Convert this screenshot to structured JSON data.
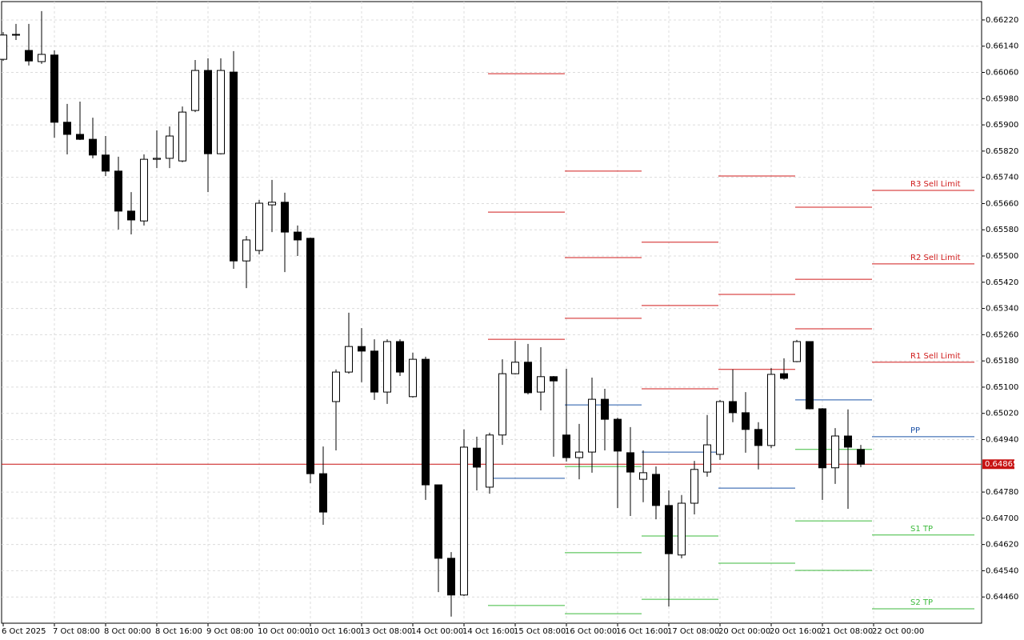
{
  "chart_data": {
    "type": "candlestick",
    "categories": [
      "6 Oct 2025",
      null,
      null,
      null,
      "7 Oct 08:00",
      null,
      null,
      null,
      "8 Oct 00:00",
      null,
      null,
      null,
      "8 Oct 16:00",
      null,
      null,
      null,
      "9 Oct 08:00",
      null,
      null,
      null,
      "10 Oct 00:00",
      null,
      null,
      null,
      "10 Oct 16:00",
      null,
      null,
      null,
      "13 Oct 08:00",
      null,
      null,
      null,
      "14 Oct 00:00",
      null,
      null,
      null,
      "14 Oct 16:00",
      null,
      null,
      null,
      "15 Oct 08:00",
      null,
      null,
      null,
      "16 Oct 00:00",
      null,
      null,
      null,
      "16 Oct 16:00",
      null,
      null,
      null,
      "17 Oct 08:00",
      null,
      null,
      null,
      "20 Oct 00:00",
      null,
      null,
      null,
      "20 Oct 16:00",
      null,
      null,
      null,
      "21 Oct 08:00",
      null,
      null,
      null,
      "22 Oct 00:00",
      null,
      null,
      null,
      null,
      null,
      null,
      null,
      null
    ],
    "open": [
      0.661,
      0.66174,
      0.66127,
      0.66093,
      0.66113,
      0.65908,
      0.65871,
      0.65856,
      0.65808,
      0.65759,
      0.65637,
      0.65607,
      0.65795,
      0.65798,
      0.6579,
      0.65944,
      0.66066,
      0.65812,
      0.66061,
      0.65485,
      0.65517,
      0.65656,
      0.65664,
      0.65573,
      0.65554,
      0.64836,
      0.65056,
      0.65146,
      0.65224,
      0.6521,
      0.65085,
      0.65239,
      0.65071,
      0.65185,
      0.64802,
      0.64578,
      0.64466,
      0.64914,
      0.64795,
      0.64954,
      0.65141,
      0.65176,
      0.65085,
      0.65132,
      0.64954,
      0.64885,
      0.64902,
      0.65063,
      0.65002,
      0.649,
      0.64819,
      0.64834,
      0.64739,
      0.64588,
      0.64746,
      0.64841,
      0.64895,
      0.65056,
      0.65022,
      0.64971,
      0.64922,
      0.65141,
      0.65178,
      0.65239,
      0.65034,
      0.64854,
      0.64951,
      0.6491,
      null,
      null,
      null,
      null,
      null,
      null,
      null,
      null,
      null
    ],
    "high": [
      0.66183,
      0.66208,
      0.66208,
      0.66247,
      0.66127,
      0.65964,
      0.65971,
      0.65922,
      0.65866,
      0.65803,
      0.65695,
      0.6581,
      0.65883,
      0.65895,
      0.65956,
      0.66098,
      0.66103,
      0.66103,
      0.66125,
      0.65561,
      0.65671,
      0.65732,
      0.65693,
      0.65593,
      0.65556,
      0.64919,
      0.65154,
      0.65327,
      0.6528,
      0.65246,
      0.65246,
      0.65246,
      0.65205,
      0.65193,
      0.64802,
      0.64597,
      0.64971,
      0.64949,
      0.64961,
      0.65185,
      0.65241,
      0.65232,
      0.65222,
      0.65134,
      0.65156,
      0.64988,
      0.65129,
      0.65095,
      0.65007,
      0.64978,
      0.64907,
      0.64858,
      0.64785,
      0.64771,
      0.64875,
      0.65015,
      0.65061,
      0.65154,
      0.65085,
      0.64993,
      0.65158,
      0.65188,
      0.65244,
      0.65239,
      0.65036,
      0.64975,
      0.65032,
      0.64924,
      null,
      null,
      null,
      null,
      null,
      null,
      null,
      null,
      null
    ],
    "low": [
      0.66095,
      0.66159,
      0.66081,
      0.66086,
      0.65861,
      0.6581,
      0.65854,
      0.65798,
      0.65744,
      0.65581,
      0.65566,
      0.65593,
      0.65768,
      0.65768,
      0.65786,
      0.65939,
      0.65695,
      0.6581,
      0.65461,
      0.65402,
      0.65505,
      0.65573,
      0.65451,
      0.655,
      0.64807,
      0.6468,
      0.64907,
      0.65141,
      0.65115,
      0.65061,
      0.65049,
      0.65134,
      0.65068,
      0.64756,
      0.64475,
      0.644,
      0.64463,
      0.64785,
      0.64775,
      0.64924,
      0.65139,
      0.65078,
      0.65029,
      0.64888,
      0.64873,
      0.64819,
      0.64839,
      0.64907,
      0.64731,
      0.64707,
      0.64749,
      0.64697,
      0.64431,
      0.64578,
      0.64712,
      0.64827,
      0.64878,
      0.64993,
      0.649,
      0.64849,
      0.64914,
      0.65122,
      0.65176,
      0.65032,
      0.64756,
      0.64805,
      0.64729,
      0.64856,
      null,
      null,
      null,
      null,
      null,
      null,
      null,
      null,
      null
    ],
    "close": [
      0.66174,
      0.66176,
      0.66095,
      0.66115,
      0.65908,
      0.65871,
      0.65856,
      0.65808,
      0.65759,
      0.65637,
      0.6561,
      0.65795,
      0.65798,
      0.65866,
      0.65939,
      0.66066,
      0.65812,
      0.66066,
      0.65485,
      0.65549,
      0.65661,
      0.65664,
      0.65573,
      0.65549,
      0.64836,
      0.64719,
      0.65146,
      0.65224,
      0.6521,
      0.65085,
      0.65239,
      0.65146,
      0.65185,
      0.64802,
      0.64578,
      0.64466,
      0.64917,
      0.64856,
      0.64954,
      0.65141,
      0.65176,
      0.65083,
      0.65132,
      0.65119,
      0.64885,
      0.64902,
      0.65063,
      0.65002,
      0.64905,
      0.64841,
      0.64839,
      0.64739,
      0.64592,
      0.64746,
      0.64849,
      0.64924,
      0.65056,
      0.65022,
      0.64971,
      0.64922,
      0.65139,
      0.65127,
      0.65239,
      0.65034,
      0.64854,
      0.64951,
      0.64917,
      0.64865,
      null,
      null,
      null,
      null,
      null,
      null,
      null,
      null,
      null
    ],
    "bull_color": "#ffffff",
    "bear_color": "#000000",
    "ylim": [
      0.6438,
      0.66276
    ],
    "yticks": [
      {
        "value": 0.6622,
        "label": "0.66220"
      },
      {
        "value": 0.6614,
        "label": "0.66140"
      },
      {
        "value": 0.6606,
        "label": "0.66060"
      },
      {
        "value": 0.6598,
        "label": "0.65980"
      },
      {
        "value": 0.659,
        "label": "0.65900"
      },
      {
        "value": 0.6582,
        "label": "0.65820"
      },
      {
        "value": 0.6574,
        "label": "0.65740"
      },
      {
        "value": 0.6566,
        "label": "0.65660"
      },
      {
        "value": 0.6558,
        "label": "0.65580"
      },
      {
        "value": 0.655,
        "label": "0.65500"
      },
      {
        "value": 0.6542,
        "label": "0.65420"
      },
      {
        "value": 0.6534,
        "label": "0.65340"
      },
      {
        "value": 0.6526,
        "label": "0.65260"
      },
      {
        "value": 0.6518,
        "label": "0.65180"
      },
      {
        "value": 0.651,
        "label": "0.65100"
      },
      {
        "value": 0.6502,
        "label": "0.65020"
      },
      {
        "value": 0.6494,
        "label": "0.64940"
      },
      {
        "value": 0.6478,
        "label": "0.64780"
      },
      {
        "value": 0.647,
        "label": "0.64700"
      },
      {
        "value": 0.6462,
        "label": "0.64620"
      },
      {
        "value": 0.6454,
        "label": "0.64540"
      },
      {
        "value": 0.6446,
        "label": "0.64460"
      }
    ],
    "grid": true,
    "current_price": 0.64865,
    "current_price_color": "#c81414",
    "level_periods": [
      [
        38,
        44
      ],
      [
        44,
        50
      ],
      [
        50,
        56
      ],
      [
        56,
        62
      ],
      [
        62,
        68
      ],
      [
        68,
        76
      ]
    ],
    "levels": [
      {
        "label": "R3 Sell Limit",
        "color": "#d01c1c",
        "values": [
          0.66056,
          0.65759,
          0.65542,
          0.65744,
          0.65649,
          0.657
        ]
      },
      {
        "label": "R2 Sell Limit",
        "color": "#d01c1c",
        "values": [
          0.65634,
          0.65495,
          0.65349,
          0.65383,
          0.65429,
          0.65476
        ]
      },
      {
        "label": "R1 Sell Limit",
        "color": "#d01c1c",
        "values": [
          0.65246,
          0.6531,
          0.65095,
          0.65154,
          0.65278,
          0.65176
        ]
      },
      {
        "label": "PP",
        "color": "#1e54a8",
        "values": [
          0.64822,
          0.65046,
          0.64902,
          0.64792,
          0.65061,
          0.64949
        ]
      },
      {
        "label": "S1 TP",
        "color": "#3cba3c",
        "values": [
          0.64434,
          0.64858,
          0.64646,
          0.64563,
          0.6491,
          0.64649
        ]
      },
      {
        "label": "S2 TP",
        "color": "#3cba3c",
        "values": [
          null,
          0.64595,
          0.64453,
          null,
          0.64692,
          0.64424
        ]
      },
      {
        "label": null,
        "color": "#3cba3c",
        "values": [
          null,
          0.64409,
          null,
          null,
          0.64541,
          null
        ]
      }
    ]
  }
}
